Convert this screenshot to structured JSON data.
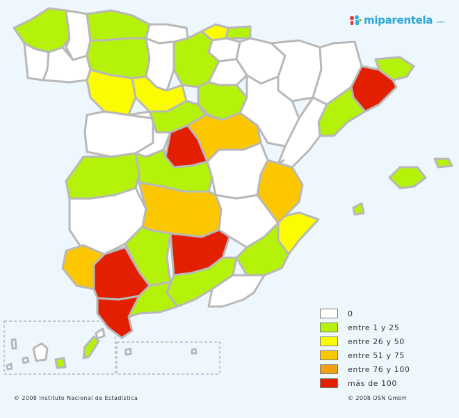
{
  "brand": {
    "name": "miparentela",
    "suffix": ".com"
  },
  "colors": {
    "c0": "#ffffff",
    "c1": "#b5f20a",
    "c2": "#fcfc00",
    "c3": "#fdc700",
    "c4": "#f0a010",
    "c5": "#e22000"
  },
  "legend": [
    {
      "label": "0",
      "color": "#ffffff"
    },
    {
      "label": "entre 1 y 25",
      "color": "#b5f20a"
    },
    {
      "label": "entre 26 y 50",
      "color": "#fcfc00"
    },
    {
      "label": "entre 51 y 75",
      "color": "#fdc700"
    },
    {
      "label": "entre 76 y 100",
      "color": "#f0a010"
    },
    {
      "label": "más de 100",
      "color": "#e22000"
    }
  ],
  "footer": {
    "left": "© 2008 Instituto Nacional de Estadística",
    "right": "© 2008 OSN GmbH"
  }
}
